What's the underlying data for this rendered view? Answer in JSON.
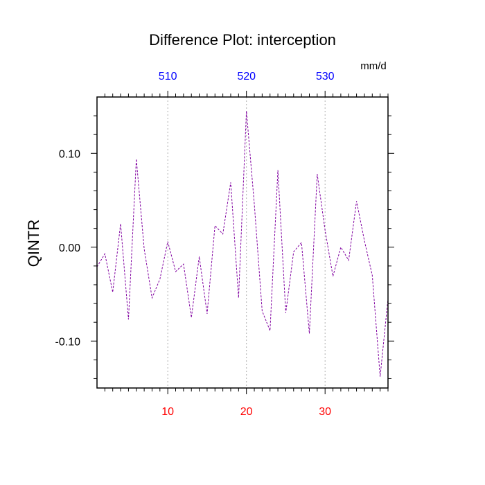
{
  "chart_data": {
    "type": "line",
    "title": "Difference Plot: interception",
    "units": "mm/d",
    "ylabel": "QINTR",
    "xlim": [
      1,
      38
    ],
    "ylim": [
      -0.15,
      0.16
    ],
    "y_ticks": [
      {
        "value": 0.1,
        "label": "0.10"
      },
      {
        "value": 0.0,
        "label": "0.00"
      },
      {
        "value": -0.1,
        "label": "-0.10"
      }
    ],
    "x_ticks_bottom": [
      {
        "value": 10,
        "label": "10"
      },
      {
        "value": 20,
        "label": "20"
      },
      {
        "value": 30,
        "label": "30"
      }
    ],
    "x_ticks_top": [
      {
        "value": 10,
        "label": "510"
      },
      {
        "value": 20,
        "label": "520"
      },
      {
        "value": 30,
        "label": "530"
      }
    ],
    "grid_x": [
      10,
      20,
      30
    ],
    "bottom_tick_color": "#ff0000",
    "top_tick_color": "#0000ff",
    "series": [
      {
        "color": "#8000a0",
        "dashed": true,
        "x": [
          1,
          2,
          3,
          4,
          5,
          6,
          7,
          8,
          9,
          10,
          11,
          12,
          13,
          14,
          15,
          16,
          17,
          18,
          19,
          20,
          21,
          22,
          23,
          24,
          25,
          26,
          27,
          28,
          29,
          30,
          31,
          32,
          33,
          34,
          35,
          36,
          37,
          38
        ],
        "y": [
          -0.021,
          -0.007,
          -0.048,
          0.025,
          -0.077,
          0.094,
          -0.002,
          -0.054,
          -0.034,
          0.006,
          -0.026,
          -0.018,
          -0.075,
          -0.01,
          -0.071,
          0.023,
          0.014,
          0.069,
          -0.054,
          0.145,
          0.046,
          -0.068,
          -0.089,
          0.082,
          -0.07,
          -0.005,
          0.005,
          -0.092,
          0.078,
          0.018,
          -0.031,
          0.0,
          -0.014,
          0.049,
          0.007,
          -0.03,
          -0.138,
          -0.055
        ]
      }
    ]
  }
}
